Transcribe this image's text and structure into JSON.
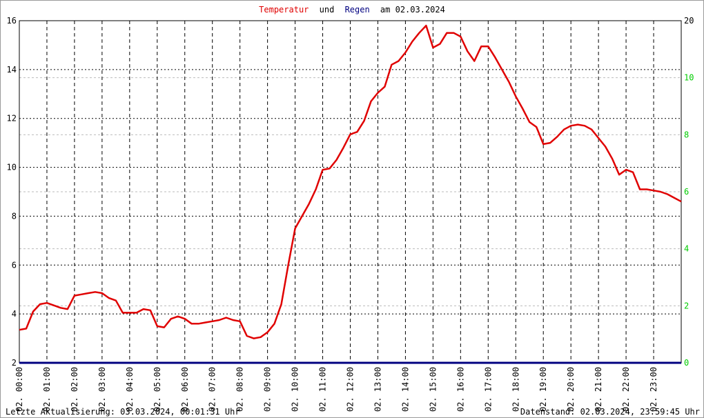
{
  "chart_data": {
    "type": "line",
    "title_and": "und",
    "title_date": "am 02.03.2024",
    "xlim": [
      0,
      24
    ],
    "xticks": [
      {
        "value": 0,
        "label": "02. 00:00"
      },
      {
        "value": 1,
        "label": "02. 01:00"
      },
      {
        "value": 2,
        "label": "02. 02:00"
      },
      {
        "value": 3,
        "label": "02. 03:00"
      },
      {
        "value": 4,
        "label": "02. 04:00"
      },
      {
        "value": 5,
        "label": "02. 05:00"
      },
      {
        "value": 6,
        "label": "02. 06:00"
      },
      {
        "value": 7,
        "label": "02. 07:00"
      },
      {
        "value": 8,
        "label": "02. 08:00"
      },
      {
        "value": 9,
        "label": "02. 09:00"
      },
      {
        "value": 10,
        "label": "02. 10:00"
      },
      {
        "value": 11,
        "label": "02. 11:00"
      },
      {
        "value": 12,
        "label": "02. 12:00"
      },
      {
        "value": 13,
        "label": "02. 13:00"
      },
      {
        "value": 14,
        "label": "02. 14:00"
      },
      {
        "value": 15,
        "label": "02. 15:00"
      },
      {
        "value": 16,
        "label": "02. 16:00"
      },
      {
        "value": 17,
        "label": "02. 17:00"
      },
      {
        "value": 18,
        "label": "02. 18:00"
      },
      {
        "value": 19,
        "label": "02. 19:00"
      },
      {
        "value": 20,
        "label": "02. 20:00"
      },
      {
        "value": 21,
        "label": "02. 21:00"
      },
      {
        "value": 22,
        "label": "02. 22:00"
      },
      {
        "value": 23,
        "label": "02. 23:00"
      }
    ],
    "ylim": [
      2,
      16
    ],
    "yticks": [
      2,
      4,
      6,
      8,
      10,
      12,
      14,
      16
    ],
    "y2lim": [
      0,
      12
    ],
    "y2ticks": [
      0,
      2,
      4,
      6,
      8,
      10
    ],
    "y2_top_label": "20",
    "y2_tick_color": "#00cc00",
    "grid": true,
    "x": [
      0,
      0.25,
      0.5,
      0.75,
      1,
      1.25,
      1.5,
      1.75,
      2,
      2.25,
      2.5,
      2.75,
      3,
      3.25,
      3.5,
      3.75,
      4,
      4.25,
      4.5,
      4.75,
      5,
      5.25,
      5.5,
      5.75,
      6,
      6.25,
      6.5,
      6.75,
      7,
      7.25,
      7.5,
      7.75,
      8,
      8.25,
      8.5,
      8.75,
      9,
      9.25,
      9.5,
      9.75,
      10,
      10.25,
      10.5,
      10.75,
      11,
      11.25,
      11.5,
      11.75,
      12,
      12.25,
      12.5,
      12.75,
      13,
      13.25,
      13.5,
      13.75,
      14,
      14.25,
      14.5,
      14.75,
      15,
      15.25,
      15.5,
      15.75,
      16,
      16.25,
      16.5,
      16.75,
      17,
      17.25,
      17.5,
      17.75,
      18,
      18.25,
      18.5,
      18.75,
      19,
      19.25,
      19.5,
      19.75,
      20,
      20.25,
      20.5,
      20.75,
      21,
      21.25,
      21.5,
      21.75,
      22,
      22.25,
      22.5,
      22.75,
      23,
      23.25,
      23.5,
      23.75,
      24
    ],
    "series": [
      {
        "name": "Temperatur",
        "color": "#e00000",
        "values": [
          3.35,
          3.4,
          4.1,
          4.4,
          4.45,
          4.35,
          4.25,
          4.2,
          4.75,
          4.8,
          4.85,
          4.9,
          4.85,
          4.65,
          4.55,
          4.05,
          4.05,
          4.05,
          4.2,
          4.15,
          3.5,
          3.45,
          3.8,
          3.9,
          3.8,
          3.6,
          3.6,
          3.65,
          3.7,
          3.75,
          3.85,
          3.75,
          3.7,
          3.1,
          3.0,
          3.05,
          3.25,
          3.6,
          4.4,
          6.0,
          7.5,
          8.0,
          8.5,
          9.1,
          9.9,
          9.95,
          10.3,
          10.8,
          11.35,
          11.45,
          11.9,
          12.7,
          13.05,
          13.3,
          14.2,
          14.35,
          14.7,
          15.15,
          15.5,
          15.8,
          14.9,
          15.05,
          15.5,
          15.5,
          15.35,
          14.75,
          14.35,
          14.95,
          14.95,
          14.5,
          14.0,
          13.5,
          12.9,
          12.4,
          11.85,
          11.65,
          10.95,
          11.0,
          11.25,
          11.55,
          11.7,
          11.75,
          11.7,
          11.55,
          11.2,
          10.85,
          10.35,
          9.7,
          9.9,
          9.8,
          9.1,
          9.1,
          9.05,
          9.0,
          8.9,
          8.75,
          8.6
        ]
      },
      {
        "name": "Regen",
        "color": "#000080",
        "axis": "y2",
        "x": [
          0,
          24
        ],
        "values": [
          0,
          0
        ]
      }
    ],
    "footer_left": "Letzte Aktualisierung: 03.03.2024, 00:01:31 Uhr",
    "footer_right": "Datenstand: 02.03.2024, 23:59:45 Uhr"
  }
}
